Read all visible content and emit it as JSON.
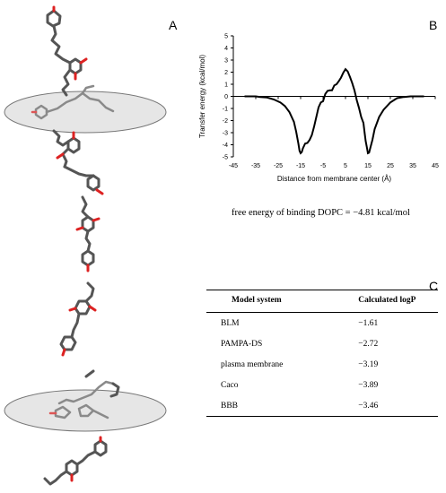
{
  "panels": {
    "a": "A",
    "b": "B",
    "c": "C"
  },
  "caption": "free energy of binding DOPC = −4.81 kcal/mol",
  "table": {
    "headers": [
      "Model system",
      "Calculated logP"
    ],
    "rows": [
      {
        "name": "BLM",
        "value": "−1.61"
      },
      {
        "name": "PAMPA-DS",
        "value": "−2.72"
      },
      {
        "name": "plasma membrane",
        "value": "−3.19"
      },
      {
        "name": "Caco",
        "value": "−3.89"
      },
      {
        "name": "BBB",
        "value": "−3.46"
      }
    ]
  },
  "chart_data": {
    "type": "line",
    "title": "",
    "xlabel": "Distance from membrane center (Å)",
    "ylabel": "Transfer energy (kcal/mol)",
    "xlim": [
      -45,
      45
    ],
    "ylim": [
      -5,
      5
    ],
    "x_ticks": [
      "-45",
      "-35",
      "-25",
      "-15",
      "-5",
      "5",
      "15",
      "25",
      "35",
      "45"
    ],
    "y_ticks": [
      "5",
      "4",
      "3",
      "2",
      "1",
      "0",
      "-1",
      "-2",
      "-3",
      "-4",
      "-5"
    ],
    "grid": false,
    "series": [
      {
        "x": [
          -40,
          -35,
          -33,
          -30,
          -27,
          -24,
          -22,
          -20,
          -18,
          -17,
          -16,
          -15.5,
          -15,
          -14.5,
          -14,
          -13,
          -12,
          -11,
          -10,
          -9,
          -8,
          -7,
          -6,
          -5,
          -4,
          -3,
          -2,
          -1,
          0,
          1,
          2,
          3,
          4,
          5,
          6,
          7,
          8,
          9,
          10,
          11,
          12,
          13,
          13.5,
          14,
          14.5,
          15,
          15.5,
          16,
          17,
          18,
          20,
          22,
          25,
          28,
          31,
          34,
          37,
          40
        ],
        "y": [
          0,
          0,
          -0.05,
          -0.1,
          -0.25,
          -0.5,
          -0.8,
          -1.3,
          -2.1,
          -2.9,
          -3.9,
          -4.5,
          -4.7,
          -4.6,
          -4.3,
          -3.9,
          -3.85,
          -3.6,
          -3.2,
          -2.5,
          -1.7,
          -0.9,
          -0.5,
          -0.4,
          0.2,
          0.45,
          0.5,
          0.5,
          0.9,
          1.0,
          1.25,
          1.55,
          1.95,
          2.25,
          2.05,
          1.6,
          1.1,
          0.5,
          -0.3,
          -0.95,
          -1.7,
          -2.2,
          -3.0,
          -3.7,
          -4.2,
          -4.7,
          -4.65,
          -4.3,
          -3.6,
          -2.7,
          -1.7,
          -1.1,
          -0.5,
          -0.15,
          -0.05,
          0,
          0,
          0
        ]
      }
    ]
  }
}
